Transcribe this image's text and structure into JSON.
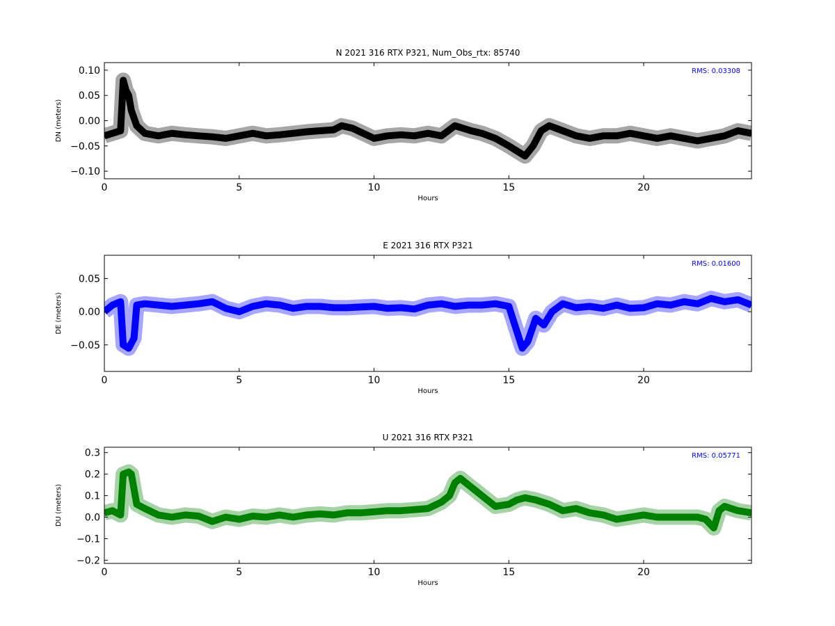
{
  "chart_data": [
    {
      "type": "line",
      "title": "N 2021 316 RTX  P321, Num_Obs_rtx: 85740",
      "xlabel": "Hours",
      "ylabel": "DN (meters)",
      "xlim": [
        0,
        24
      ],
      "ylim": [
        -0.115,
        0.115
      ],
      "xticks": [
        0,
        5,
        10,
        15,
        20
      ],
      "xtick_labels": [
        "0",
        "5",
        "10",
        "15",
        "20"
      ],
      "yticks": [
        -0.1,
        -0.05,
        0.0,
        0.05,
        0.1
      ],
      "ytick_labels": [
        "−0.10",
        "−0.05",
        "0.00",
        "0.05",
        "0.10"
      ],
      "annotation": "RMS:  0.03308",
      "annotation_color": "#0000ff",
      "grid": false,
      "series": [
        {
          "color": "#000000",
          "x": [
            0,
            0.3,
            0.6,
            0.7,
            0.8,
            0.9,
            1.0,
            1.2,
            1.5,
            2.0,
            2.5,
            3.0,
            3.5,
            4.0,
            4.5,
            5.0,
            5.5,
            6.0,
            6.5,
            7.0,
            7.5,
            8.0,
            8.5,
            8.8,
            9.2,
            9.6,
            10.0,
            10.5,
            11.0,
            11.5,
            12.0,
            12.5,
            13.0,
            13.3,
            13.6,
            14.0,
            14.5,
            15.0,
            15.3,
            15.6,
            15.9,
            16.2,
            16.5,
            17.0,
            17.5,
            18.0,
            18.5,
            19.0,
            19.5,
            20.0,
            20.5,
            21.0,
            21.5,
            22.0,
            22.5,
            23.0,
            23.5,
            24.0
          ],
          "y": [
            -0.03,
            -0.025,
            -0.02,
            0.08,
            0.06,
            0.05,
            0.02,
            -0.01,
            -0.025,
            -0.03,
            -0.025,
            -0.028,
            -0.03,
            -0.032,
            -0.035,
            -0.03,
            -0.025,
            -0.03,
            -0.028,
            -0.025,
            -0.022,
            -0.02,
            -0.018,
            -0.01,
            -0.015,
            -0.025,
            -0.035,
            -0.03,
            -0.028,
            -0.03,
            -0.025,
            -0.03,
            -0.01,
            -0.015,
            -0.02,
            -0.025,
            -0.035,
            -0.05,
            -0.06,
            -0.07,
            -0.05,
            -0.02,
            -0.01,
            -0.02,
            -0.03,
            -0.035,
            -0.03,
            -0.03,
            -0.025,
            -0.03,
            -0.035,
            -0.03,
            -0.035,
            -0.04,
            -0.035,
            -0.03,
            -0.02,
            -0.025
          ]
        }
      ]
    },
    {
      "type": "line",
      "title": "E 2021 316 RTX  P321",
      "xlabel": "Hours",
      "ylabel": "DE (meters)",
      "xlim": [
        0,
        24
      ],
      "ylim": [
        -0.09,
        0.085
      ],
      "xticks": [
        0,
        5,
        10,
        15,
        20
      ],
      "xtick_labels": [
        "0",
        "5",
        "10",
        "15",
        "20"
      ],
      "yticks": [
        -0.05,
        0.0,
        0.05
      ],
      "ytick_labels": [
        "−0.05",
        "0.00",
        "0.05"
      ],
      "annotation": "RMS:  0.01600",
      "annotation_color": "#0000ff",
      "grid": false,
      "series": [
        {
          "color": "#0000ff",
          "x": [
            0,
            0.3,
            0.6,
            0.7,
            0.9,
            1.1,
            1.2,
            1.5,
            2.0,
            2.5,
            3.0,
            3.5,
            4.0,
            4.5,
            5.0,
            5.5,
            6.0,
            6.5,
            7.0,
            7.5,
            8.0,
            8.5,
            9.0,
            9.5,
            10.0,
            10.5,
            11.0,
            11.5,
            12.0,
            12.5,
            13.0,
            13.5,
            14.0,
            14.5,
            15.0,
            15.3,
            15.5,
            15.7,
            16.0,
            16.3,
            16.6,
            17.0,
            17.5,
            18.0,
            18.5,
            19.0,
            19.5,
            20.0,
            20.5,
            21.0,
            21.5,
            22.0,
            22.5,
            23.0,
            23.5,
            24.0
          ],
          "y": [
            0.0,
            0.01,
            0.015,
            -0.05,
            -0.055,
            -0.04,
            0.01,
            0.012,
            0.01,
            0.008,
            0.01,
            0.012,
            0.015,
            0.005,
            0.0,
            0.008,
            0.012,
            0.01,
            0.005,
            0.008,
            0.008,
            0.006,
            0.006,
            0.007,
            0.008,
            0.005,
            0.006,
            0.004,
            0.01,
            0.012,
            0.008,
            0.01,
            0.01,
            0.012,
            0.008,
            -0.03,
            -0.055,
            -0.045,
            -0.01,
            -0.02,
            0.0,
            0.012,
            0.006,
            0.008,
            0.005,
            0.01,
            0.005,
            0.006,
            0.012,
            0.01,
            0.015,
            0.012,
            0.02,
            0.015,
            0.018,
            0.01
          ]
        }
      ]
    },
    {
      "type": "line",
      "title": "U 2021 316 RTX  P321",
      "xlabel": "Hours",
      "ylabel": "DU (meters)",
      "xlim": [
        0,
        24
      ],
      "ylim": [
        -0.215,
        0.325
      ],
      "xticks": [
        0,
        5,
        10,
        15,
        20
      ],
      "xtick_labels": [
        "0",
        "5",
        "10",
        "15",
        "20"
      ],
      "yticks": [
        -0.2,
        -0.1,
        0.0,
        0.1,
        0.2,
        0.3
      ],
      "ytick_labels": [
        "−0.2",
        "−0.1",
        "0.0",
        "0.1",
        "0.2",
        "0.3"
      ],
      "annotation": "RMS:  0.05771",
      "annotation_color": "#0000ff",
      "grid": false,
      "series": [
        {
          "color": "#008000",
          "x": [
            0,
            0.3,
            0.6,
            0.7,
            0.9,
            1.0,
            1.2,
            1.5,
            2.0,
            2.5,
            3.0,
            3.5,
            4.0,
            4.5,
            5.0,
            5.5,
            6.0,
            6.5,
            7.0,
            7.5,
            8.0,
            8.5,
            9.0,
            9.5,
            10.0,
            10.5,
            11.0,
            11.5,
            12.0,
            12.5,
            12.8,
            13.0,
            13.2,
            13.5,
            13.8,
            14.0,
            14.5,
            15.0,
            15.3,
            15.6,
            16.0,
            16.5,
            17.0,
            17.5,
            18.0,
            18.5,
            19.0,
            19.5,
            20.0,
            20.5,
            21.0,
            21.5,
            22.0,
            22.3,
            22.6,
            22.8,
            23.0,
            23.5,
            24.0
          ],
          "y": [
            0.02,
            0.03,
            0.01,
            0.2,
            0.21,
            0.2,
            0.06,
            0.04,
            0.01,
            0.0,
            0.01,
            0.005,
            -0.02,
            0.0,
            -0.01,
            0.005,
            0.0,
            0.01,
            0.0,
            0.01,
            0.015,
            0.01,
            0.02,
            0.02,
            0.025,
            0.03,
            0.03,
            0.035,
            0.04,
            0.07,
            0.1,
            0.16,
            0.18,
            0.15,
            0.12,
            0.1,
            0.05,
            0.06,
            0.08,
            0.09,
            0.08,
            0.06,
            0.03,
            0.04,
            0.02,
            0.01,
            -0.01,
            0.0,
            0.01,
            0.0,
            0.0,
            0.0,
            0.0,
            -0.01,
            -0.05,
            0.03,
            0.05,
            0.03,
            0.02
          ]
        }
      ]
    }
  ]
}
